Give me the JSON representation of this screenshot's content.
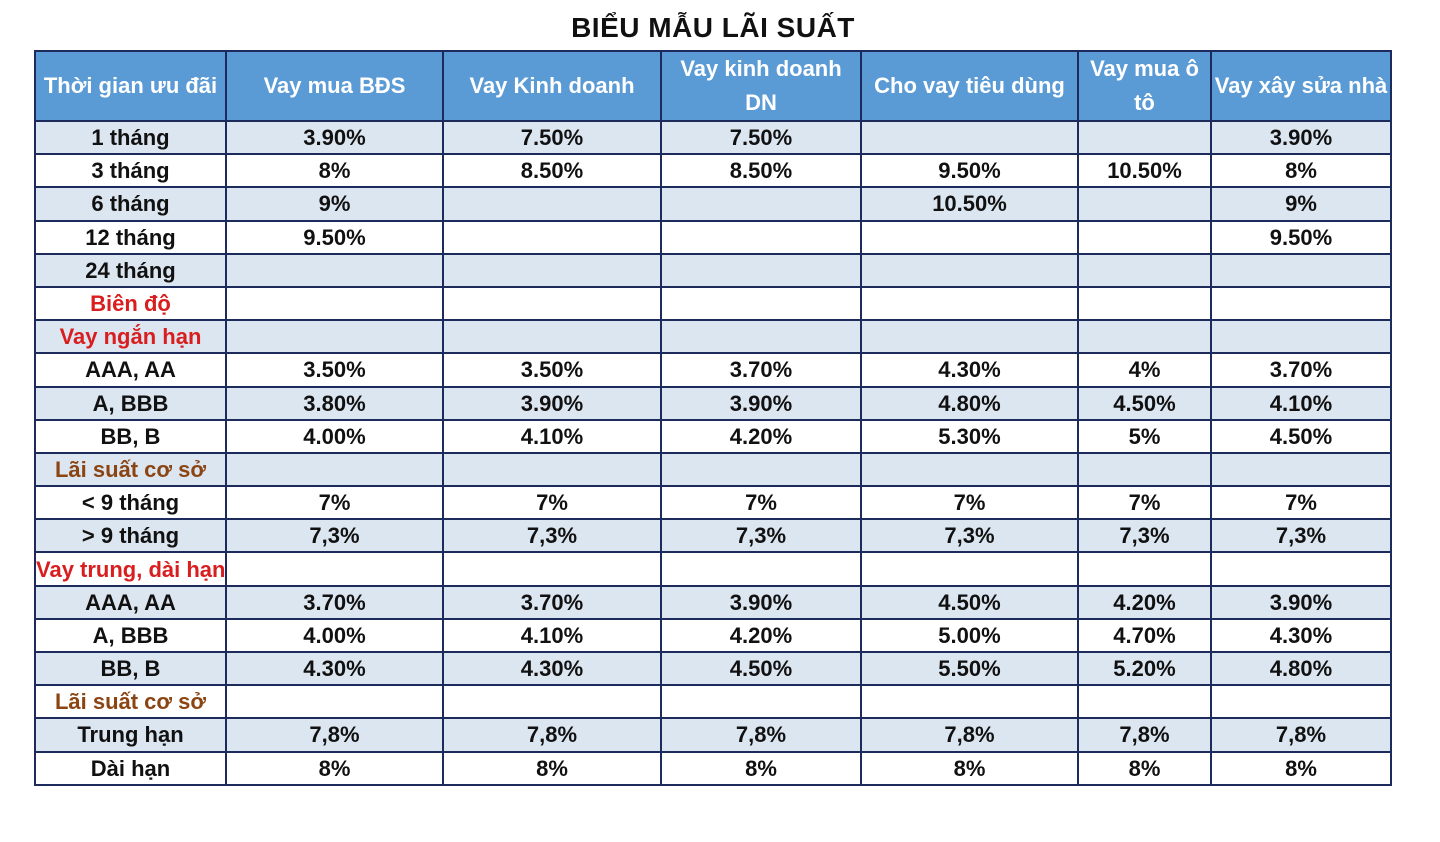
{
  "title": "BIỂU MẪU LÃI SUẤT",
  "colors": {
    "header_bg": "#5b9bd5",
    "header_text": "#ffffff",
    "row_shade": "#dce6f1",
    "border": "#1c2b5c",
    "section_red": "#d81e1e",
    "section_brown": "#8b4513"
  },
  "columns": [
    "Thời gian ưu đãi",
    "Vay mua BĐS",
    "Vay Kinh doanh",
    "Vay kinh doanh DN",
    "Cho vay tiêu dùng",
    "Vay mua ô tô",
    "Vay xây sửa nhà"
  ],
  "rows": [
    {
      "label": "1 tháng",
      "values": [
        "3.90%",
        "7.50%",
        "7.50%",
        "",
        "",
        "3.90%"
      ]
    },
    {
      "label": "3 tháng",
      "values": [
        "8%",
        "8.50%",
        "8.50%",
        "9.50%",
        "10.50%",
        "8%"
      ]
    },
    {
      "label": "6 tháng",
      "values": [
        "9%",
        "",
        "",
        "10.50%",
        "",
        "9%"
      ]
    },
    {
      "label": "12 tháng",
      "values": [
        "9.50%",
        "",
        "",
        "",
        "",
        "9.50%"
      ]
    },
    {
      "label": "24 tháng",
      "values": [
        "",
        "",
        "",
        "",
        "",
        ""
      ]
    },
    {
      "label": "Biên độ",
      "section": "red",
      "values": [
        "",
        "",
        "",
        "",
        "",
        ""
      ]
    },
    {
      "label": "Vay ngắn hạn",
      "section": "red",
      "values": [
        "",
        "",
        "",
        "",
        "",
        ""
      ]
    },
    {
      "label": "AAA, AA",
      "values": [
        "3.50%",
        "3.50%",
        "3.70%",
        "4.30%",
        "4%",
        "3.70%"
      ]
    },
    {
      "label": "A, BBB",
      "values": [
        "3.80%",
        "3.90%",
        "3.90%",
        "4.80%",
        "4.50%",
        "4.10%"
      ]
    },
    {
      "label": "BB, B",
      "values": [
        "4.00%",
        "4.10%",
        "4.20%",
        "5.30%",
        "5%",
        "4.50%"
      ]
    },
    {
      "label": "Lãi suất cơ sở",
      "section": "brown",
      "values": [
        "",
        "",
        "",
        "",
        "",
        ""
      ]
    },
    {
      "label": "< 9 tháng",
      "values": [
        "7%",
        "7%",
        "7%",
        "7%",
        "7%",
        "7%"
      ]
    },
    {
      "label": "> 9 tháng",
      "values": [
        "7,3%",
        "7,3%",
        "7,3%",
        "7,3%",
        "7,3%",
        "7,3%"
      ]
    },
    {
      "label": "Vay trung, dài hạn",
      "section": "red",
      "values": [
        "",
        "",
        "",
        "",
        "",
        ""
      ]
    },
    {
      "label": "AAA, AA",
      "values": [
        "3.70%",
        "3.70%",
        "3.90%",
        "4.50%",
        "4.20%",
        "3.90%"
      ]
    },
    {
      "label": "A, BBB",
      "values": [
        "4.00%",
        "4.10%",
        "4.20%",
        "5.00%",
        "4.70%",
        "4.30%"
      ]
    },
    {
      "label": "BB, B",
      "values": [
        "4.30%",
        "4.30%",
        "4.50%",
        "5.50%",
        "5.20%",
        "4.80%"
      ]
    },
    {
      "label": "Lãi suất cơ sở",
      "section": "brown",
      "values": [
        "",
        "",
        "",
        "",
        "",
        ""
      ]
    },
    {
      "label": "Trung hạn",
      "values": [
        "7,8%",
        "7,8%",
        "7,8%",
        "7,8%",
        "7,8%",
        "7,8%"
      ]
    },
    {
      "label": "Dài hạn",
      "values": [
        "8%",
        "8%",
        "8%",
        "8%",
        "8%",
        "8%"
      ]
    }
  ]
}
